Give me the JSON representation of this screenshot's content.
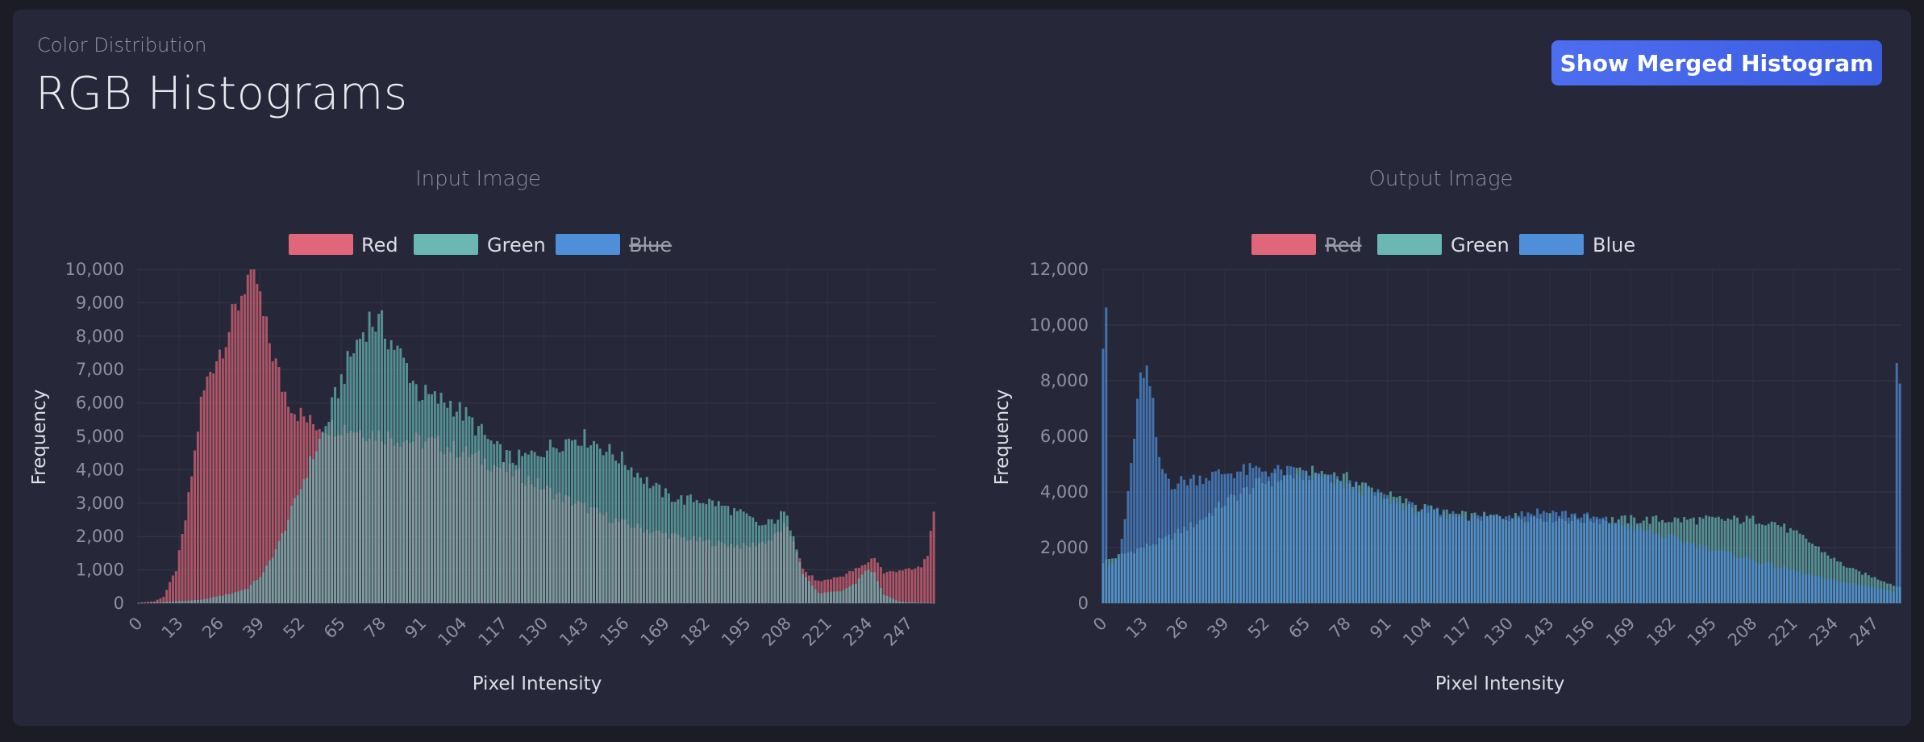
{
  "header": {
    "subtitle": "Color Distribution",
    "title": "RGB Histograms",
    "merge_button": "Show Merged Histogram"
  },
  "legend_labels": {
    "red": "Red",
    "green": "Green",
    "blue": "Blue"
  },
  "colors": {
    "red": "#e06679",
    "green": "#6ab7b4",
    "blue": "#4f8fd9",
    "panel": "#262839",
    "accent": "#4d6ef0"
  },
  "chart_data": [
    {
      "type": "bar",
      "title": "Input Image",
      "xlabel": "Pixel Intensity",
      "ylabel": "Frequency",
      "x_range": [
        0,
        255
      ],
      "xticks": [
        0,
        13,
        26,
        39,
        52,
        65,
        78,
        91,
        104,
        117,
        130,
        143,
        156,
        169,
        182,
        195,
        208,
        221,
        234,
        247
      ],
      "ylim": [
        0,
        10000
      ],
      "yticks": [
        0,
        1000,
        2000,
        3000,
        4000,
        5000,
        6000,
        7000,
        8000,
        9000,
        10000
      ],
      "ytick_labels": [
        "0",
        "1,000",
        "2,000",
        "3,000",
        "4,000",
        "5,000",
        "6,000",
        "7,000",
        "8,000",
        "9,000",
        "10,000"
      ],
      "legend_position": "top-center",
      "series": [
        {
          "name": "Red",
          "color": "red",
          "visible": true,
          "points": [
            [
              0,
              20
            ],
            [
              5,
              60
            ],
            [
              8,
              200
            ],
            [
              12,
              1000
            ],
            [
              15,
              2500
            ],
            [
              18,
              4500
            ],
            [
              20,
              6000
            ],
            [
              23,
              7000
            ],
            [
              26,
              7600
            ],
            [
              29,
              8200
            ],
            [
              32,
              9000
            ],
            [
              34,
              9600
            ],
            [
              36,
              9900
            ],
            [
              38,
              9600
            ],
            [
              40,
              8500
            ],
            [
              43,
              7500
            ],
            [
              46,
              6500
            ],
            [
              50,
              5800
            ],
            [
              55,
              5400
            ],
            [
              60,
              5300
            ],
            [
              65,
              5300
            ],
            [
              75,
              5100
            ],
            [
              85,
              4900
            ],
            [
              95,
              4800
            ],
            [
              105,
              4500
            ],
            [
              115,
              4100
            ],
            [
              125,
              3700
            ],
            [
              135,
              3200
            ],
            [
              145,
              2800
            ],
            [
              155,
              2400
            ],
            [
              165,
              2150
            ],
            [
              175,
              1950
            ],
            [
              185,
              1800
            ],
            [
              195,
              1700
            ],
            [
              203,
              1900
            ],
            [
              207,
              2300
            ],
            [
              210,
              1900
            ],
            [
              213,
              1000
            ],
            [
              218,
              650
            ],
            [
              225,
              800
            ],
            [
              232,
              1100
            ],
            [
              236,
              1400
            ],
            [
              239,
              900
            ],
            [
              244,
              1000
            ],
            [
              248,
              1000
            ],
            [
              251,
              1100
            ],
            [
              253,
              1500
            ],
            [
              255,
              2600
            ]
          ]
        },
        {
          "name": "Green",
          "color": "green",
          "visible": true,
          "points": [
            [
              0,
              0
            ],
            [
              20,
              100
            ],
            [
              30,
              300
            ],
            [
              35,
              450
            ],
            [
              40,
              900
            ],
            [
              45,
              1800
            ],
            [
              50,
              3000
            ],
            [
              55,
              4200
            ],
            [
              60,
              5300
            ],
            [
              65,
              6700
            ],
            [
              70,
              7800
            ],
            [
              74,
              8500
            ],
            [
              78,
              8300
            ],
            [
              82,
              7700
            ],
            [
              86,
              7100
            ],
            [
              90,
              6300
            ],
            [
              95,
              6100
            ],
            [
              100,
              6000
            ],
            [
              105,
              5600
            ],
            [
              110,
              5100
            ],
            [
              115,
              4600
            ],
            [
              120,
              4300
            ],
            [
              125,
              4400
            ],
            [
              130,
              4600
            ],
            [
              135,
              4800
            ],
            [
              140,
              5000
            ],
            [
              145,
              4900
            ],
            [
              150,
              4600
            ],
            [
              155,
              4300
            ],
            [
              160,
              3900
            ],
            [
              165,
              3500
            ],
            [
              170,
              3200
            ],
            [
              175,
              3100
            ],
            [
              180,
              3100
            ],
            [
              185,
              3000
            ],
            [
              190,
              2800
            ],
            [
              195,
              2600
            ],
            [
              200,
              2300
            ],
            [
              204,
              2500
            ],
            [
              207,
              2700
            ],
            [
              210,
              2100
            ],
            [
              213,
              900
            ],
            [
              218,
              300
            ],
            [
              225,
              350
            ],
            [
              230,
              600
            ],
            [
              233,
              1000
            ],
            [
              236,
              900
            ],
            [
              239,
              250
            ],
            [
              244,
              50
            ],
            [
              255,
              0
            ]
          ]
        },
        {
          "name": "Blue",
          "color": "blue",
          "visible": false,
          "points": [
            [
              0,
              0
            ],
            [
              255,
              0
            ]
          ]
        }
      ]
    },
    {
      "type": "bar",
      "title": "Output Image",
      "xlabel": "Pixel Intensity",
      "ylabel": "Frequency",
      "x_range": [
        0,
        255
      ],
      "xticks": [
        0,
        13,
        26,
        39,
        52,
        65,
        78,
        91,
        104,
        117,
        130,
        143,
        156,
        169,
        182,
        195,
        208,
        221,
        234,
        247
      ],
      "ylim": [
        0,
        12000
      ],
      "yticks": [
        0,
        2000,
        4000,
        6000,
        8000,
        10000,
        12000
      ],
      "ytick_labels": [
        "0",
        "2,000",
        "4,000",
        "6,000",
        "8,000",
        "10,000",
        "12,000"
      ],
      "legend_position": "top-center",
      "series": [
        {
          "name": "Red",
          "color": "red",
          "visible": false,
          "points": [
            [
              0,
              0
            ],
            [
              255,
              0
            ]
          ]
        },
        {
          "name": "Green",
          "color": "green",
          "visible": true,
          "points": [
            [
              0,
              1500
            ],
            [
              10,
              1900
            ],
            [
              20,
              2300
            ],
            [
              30,
              2900
            ],
            [
              40,
              3700
            ],
            [
              50,
              4300
            ],
            [
              60,
              4600
            ],
            [
              70,
              4700
            ],
            [
              80,
              4400
            ],
            [
              90,
              3900
            ],
            [
              100,
              3500
            ],
            [
              110,
              3200
            ],
            [
              120,
              3100
            ],
            [
              130,
              3100
            ],
            [
              140,
              3100
            ],
            [
              150,
              3000
            ],
            [
              160,
              3000
            ],
            [
              170,
              3000
            ],
            [
              180,
              3000
            ],
            [
              190,
              3000
            ],
            [
              200,
              3000
            ],
            [
              210,
              3000
            ],
            [
              215,
              2900
            ],
            [
              220,
              2600
            ],
            [
              225,
              2300
            ],
            [
              230,
              1900
            ],
            [
              235,
              1500
            ],
            [
              240,
              1200
            ],
            [
              245,
              1000
            ],
            [
              250,
              800
            ],
            [
              254,
              600
            ]
          ]
        },
        {
          "name": "Blue",
          "color": "blue",
          "visible": true,
          "points": [
            [
              0,
              9700
            ],
            [
              1,
              11200
            ],
            [
              2,
              1400
            ],
            [
              5,
              1600
            ],
            [
              7,
              3000
            ],
            [
              9,
              5000
            ],
            [
              11,
              7000
            ],
            [
              12,
              8000
            ],
            [
              13,
              8400
            ],
            [
              14,
              8300
            ],
            [
              16,
              7000
            ],
            [
              18,
              5000
            ],
            [
              22,
              4300
            ],
            [
              30,
              4500
            ],
            [
              40,
              4700
            ],
            [
              50,
              4800
            ],
            [
              60,
              4700
            ],
            [
              70,
              4500
            ],
            [
              80,
              4200
            ],
            [
              90,
              3800
            ],
            [
              100,
              3400
            ],
            [
              110,
              3200
            ],
            [
              120,
              3100
            ],
            [
              130,
              3200
            ],
            [
              140,
              3300
            ],
            [
              150,
              3200
            ],
            [
              160,
              3000
            ],
            [
              170,
              2700
            ],
            [
              180,
              2400
            ],
            [
              190,
              2100
            ],
            [
              200,
              1800
            ],
            [
              210,
              1500
            ],
            [
              220,
              1200
            ],
            [
              230,
              900
            ],
            [
              240,
              700
            ],
            [
              250,
              500
            ],
            [
              253,
              400
            ],
            [
              254,
              8200
            ],
            [
              255,
              8200
            ]
          ]
        }
      ]
    }
  ]
}
